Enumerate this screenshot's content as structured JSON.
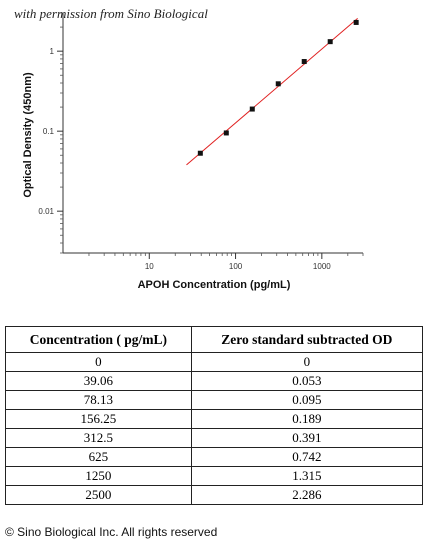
{
  "permission_text": "with permission from Sino Biological",
  "chart_data": {
    "type": "scatter",
    "xlabel": "APOH Concentration (pg/mL)",
    "ylabel": "Optical Density (450nm)",
    "xscale": "log",
    "yscale": "log",
    "xlim": [
      1,
      3000
    ],
    "ylim": [
      0.003,
      3
    ],
    "x_ticks": [
      10,
      100,
      1000
    ],
    "y_ticks": [
      0.01,
      0.1,
      1
    ],
    "x_tick_labels": [
      "10",
      "100",
      "1000"
    ],
    "y_tick_labels": [
      "0.01",
      "0.1",
      "1"
    ],
    "points": [
      {
        "x": 39.06,
        "y": 0.053
      },
      {
        "x": 78.13,
        "y": 0.095
      },
      {
        "x": 156.25,
        "y": 0.189
      },
      {
        "x": 312.5,
        "y": 0.391
      },
      {
        "x": 625,
        "y": 0.742
      },
      {
        "x": 1250,
        "y": 1.315
      },
      {
        "x": 2500,
        "y": 2.286
      }
    ],
    "fit_line": {
      "color": "#e02020",
      "from_x": 27,
      "to_x": 2600
    },
    "marker_color": "#111111",
    "grid": false
  },
  "table": {
    "headers": [
      "Concentration ( pg/mL)",
      "Zero standard subtracted OD"
    ],
    "rows": [
      [
        "0",
        "0"
      ],
      [
        "39.06",
        "0.053"
      ],
      [
        "78.13",
        "0.095"
      ],
      [
        "156.25",
        "0.189"
      ],
      [
        "312.5",
        "0.391"
      ],
      [
        "625",
        "0.742"
      ],
      [
        "1250",
        "1.315"
      ],
      [
        "2500",
        "2.286"
      ]
    ]
  },
  "copyright": "© Sino Biological Inc. All rights reserved"
}
